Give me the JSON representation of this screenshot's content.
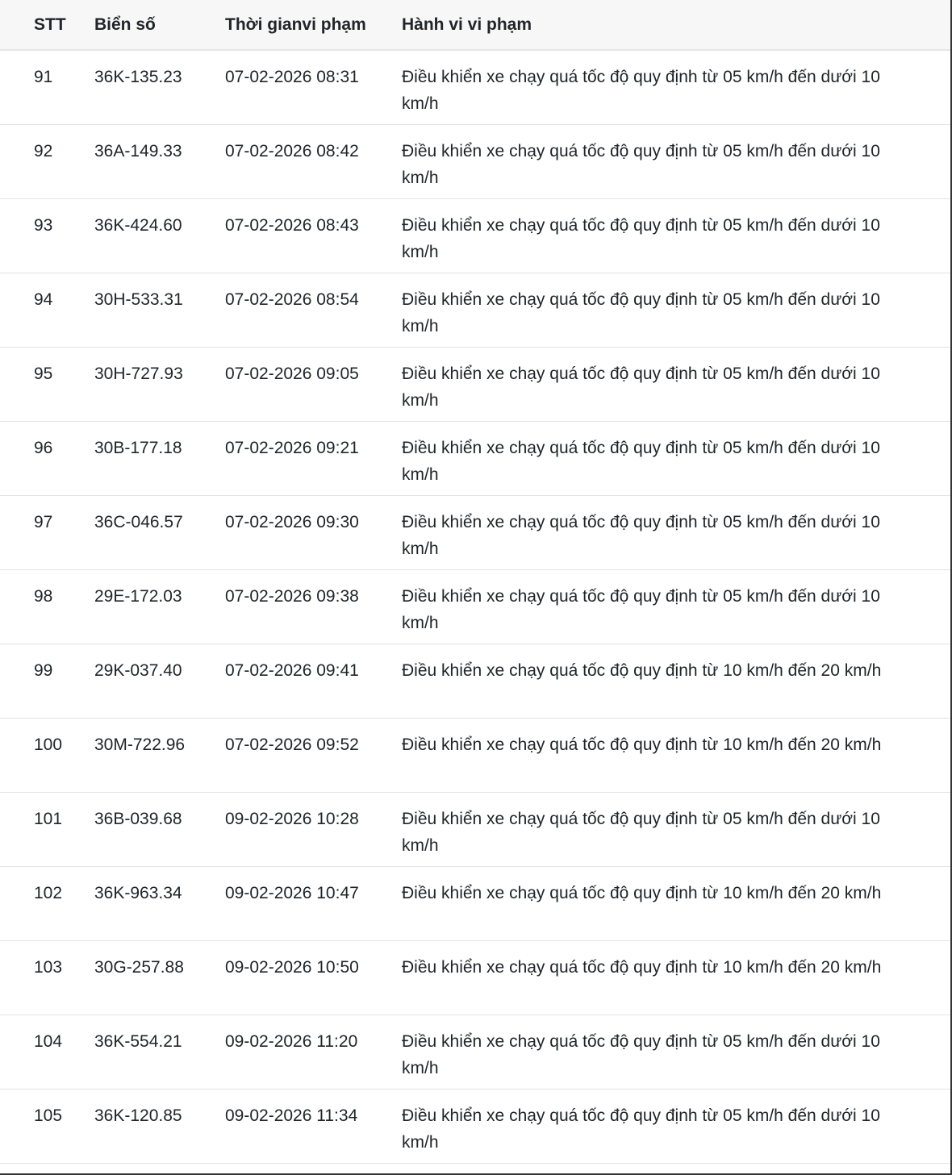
{
  "table": {
    "headers": [
      "STT",
      "Biển số",
      "Thời gianvi phạm",
      "Hành vi vi phạm"
    ],
    "rows": [
      {
        "stt": "91",
        "plate": "36K-135.23",
        "time": "07-02-2026 08:31",
        "violation": "Điều khiển xe chạy quá tốc độ quy định từ 05 km/h đến dưới 10 km/h"
      },
      {
        "stt": "92",
        "plate": "36A-149.33",
        "time": "07-02-2026 08:42",
        "violation": "Điều khiển xe chạy quá tốc độ quy định từ 05 km/h đến dưới 10 km/h"
      },
      {
        "stt": "93",
        "plate": "36K-424.60",
        "time": "07-02-2026 08:43",
        "violation": "Điều khiển xe chạy quá tốc độ quy định từ 05 km/h đến dưới 10 km/h"
      },
      {
        "stt": "94",
        "plate": "30H-533.31",
        "time": "07-02-2026 08:54",
        "violation": "Điều khiển xe chạy quá tốc độ quy định từ 05 km/h đến dưới 10 km/h"
      },
      {
        "stt": "95",
        "plate": "30H-727.93",
        "time": "07-02-2026 09:05",
        "violation": "Điều khiển xe chạy quá tốc độ quy định từ 05 km/h đến dưới 10 km/h"
      },
      {
        "stt": "96",
        "plate": "30B-177.18",
        "time": "07-02-2026 09:21",
        "violation": "Điều khiển xe chạy quá tốc độ quy định từ 05 km/h đến dưới 10 km/h"
      },
      {
        "stt": "97",
        "plate": "36C-046.57",
        "time": "07-02-2026 09:30",
        "violation": "Điều khiển xe chạy quá tốc độ quy định từ 05 km/h đến dưới 10 km/h"
      },
      {
        "stt": "98",
        "plate": "29E-172.03",
        "time": "07-02-2026 09:38",
        "violation": "Điều khiển xe chạy quá tốc độ quy định từ 05 km/h đến dưới 10 km/h"
      },
      {
        "stt": "99",
        "plate": "29K-037.40",
        "time": "07-02-2026 09:41",
        "violation": "Điều khiển xe chạy quá tốc độ quy định từ 10 km/h đến 20 km/h"
      },
      {
        "stt": "100",
        "plate": "30M-722.96",
        "time": "07-02-2026 09:52",
        "violation": "Điều khiển xe chạy quá tốc độ quy định từ 10 km/h đến 20 km/h"
      },
      {
        "stt": "101",
        "plate": "36B-039.68",
        "time": "09-02-2026 10:28",
        "violation": "Điều khiển xe chạy quá tốc độ quy định từ 05 km/h đến dưới 10 km/h"
      },
      {
        "stt": "102",
        "plate": "36K-963.34",
        "time": "09-02-2026 10:47",
        "violation": "Điều khiển xe chạy quá tốc độ quy định từ 10 km/h đến 20 km/h"
      },
      {
        "stt": "103",
        "plate": "30G-257.88",
        "time": "09-02-2026 10:50",
        "violation": "Điều khiển xe chạy quá tốc độ quy định từ 10 km/h đến 20 km/h"
      },
      {
        "stt": "104",
        "plate": "36K-554.21",
        "time": "09-02-2026 11:20",
        "violation": "Điều khiển xe chạy quá tốc độ quy định từ 05 km/h đến dưới 10 km/h"
      },
      {
        "stt": "105",
        "plate": "36K-120.85",
        "time": "09-02-2026 11:34",
        "violation": "Điều khiển xe chạy quá tốc độ quy định từ 05 km/h đến dưới 10 km/h"
      }
    ]
  }
}
